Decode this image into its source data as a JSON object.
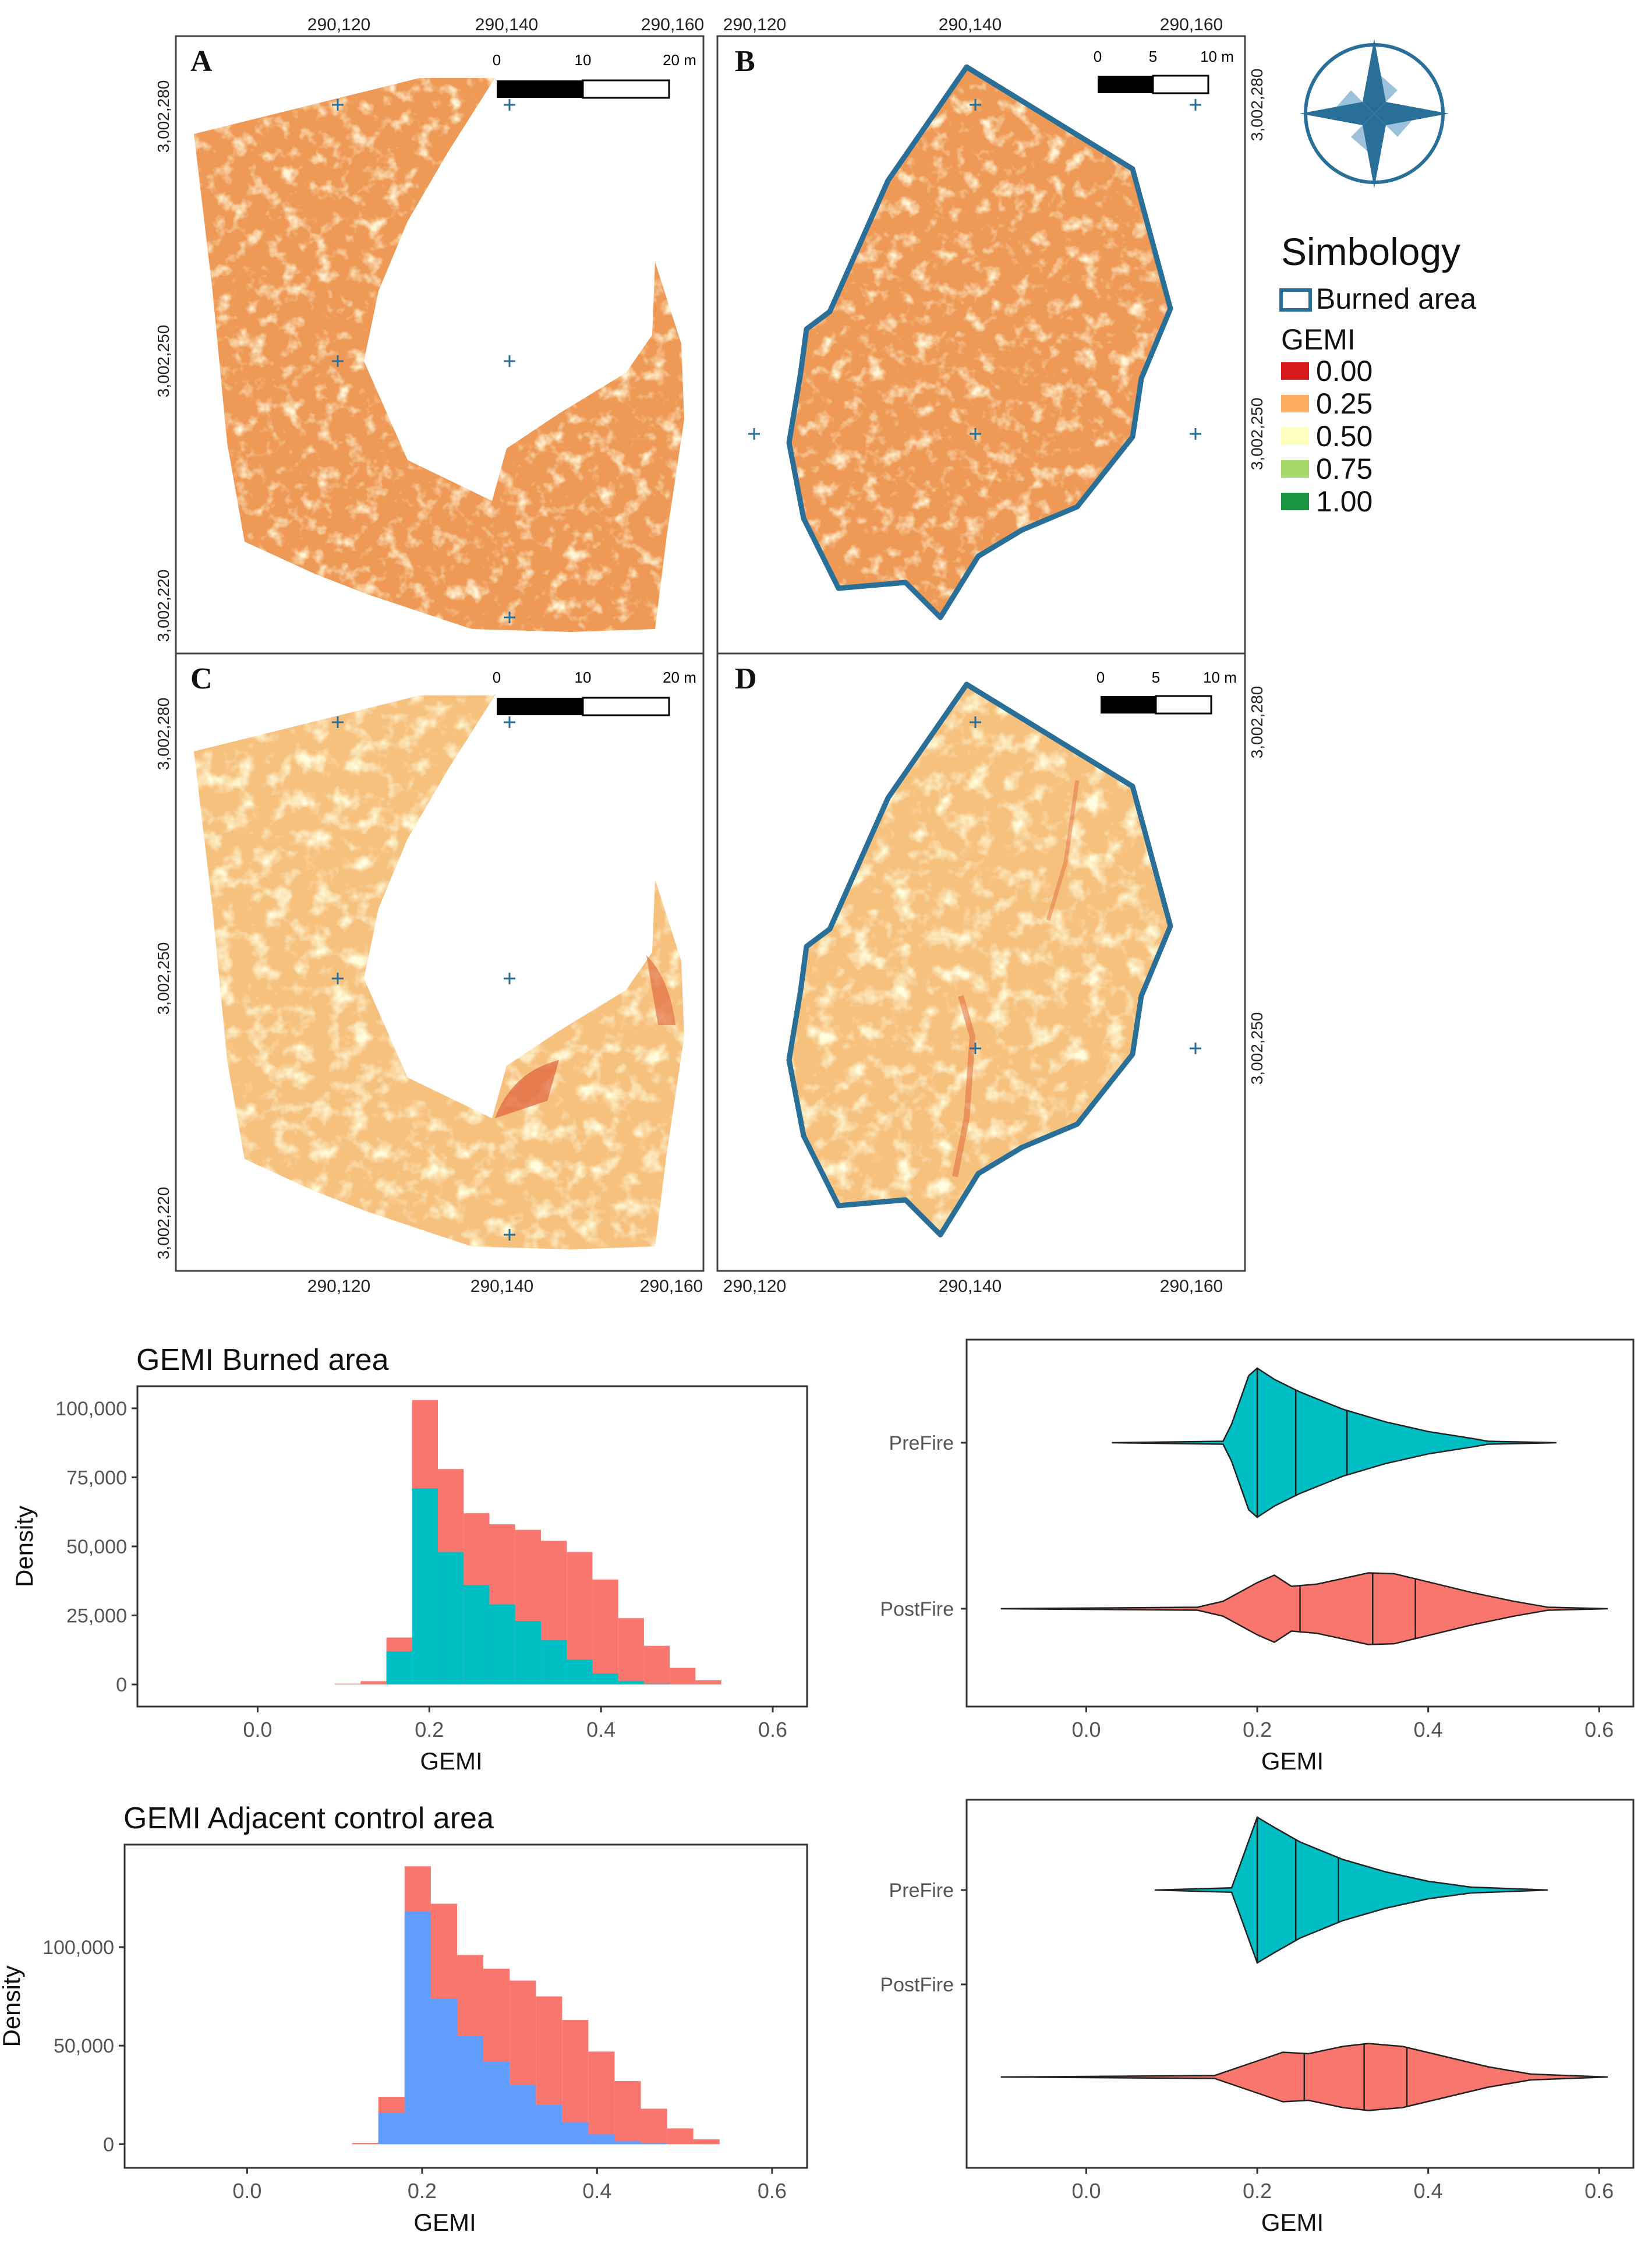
{
  "colors": {
    "burned_outline": "#2a6f97",
    "gemi_ramp": [
      "#d7191c",
      "#fdae61",
      "#ffffbf",
      "#a6d96a",
      "#1a9641"
    ],
    "prefire": "#00bfc4",
    "postfire": "#f8766d",
    "control_prefire": "#619cff",
    "map_pre": "#ee9955",
    "map_post": "#f6c07d"
  },
  "maps": {
    "panels": [
      {
        "id": "A",
        "label": "A",
        "scale": {
          "ticks": [
            "0",
            "10",
            "20 m"
          ]
        }
      },
      {
        "id": "B",
        "label": "B",
        "scale": {
          "ticks": [
            "0",
            "5",
            "10 m"
          ]
        }
      },
      {
        "id": "C",
        "label": "C",
        "scale": {
          "ticks": [
            "0",
            "10",
            "20 m"
          ]
        }
      },
      {
        "id": "D",
        "label": "D",
        "scale": {
          "ticks": [
            "0",
            "5",
            "10 m"
          ]
        }
      }
    ],
    "top_x_ticks_left": [
      "290,120",
      "290,140",
      "290,160"
    ],
    "top_x_ticks_right": [
      "290,120",
      "290,140",
      "290,160"
    ],
    "bottom_x_ticks_left": [
      "290,120",
      "290,140",
      "290,160"
    ],
    "bottom_x_ticks_right": [
      "290,120",
      "290,140",
      "290,160"
    ],
    "y_ticks_A": [
      "3,002,280",
      "3,002,250",
      "3,002,220"
    ],
    "y_ticks_B": [
      "3,002,280",
      "3,002,250"
    ],
    "y_ticks_C": [
      "3,002,280",
      "3,002,250",
      "3,002,220"
    ],
    "y_ticks_D": [
      "3,002,280",
      "3,002,250"
    ]
  },
  "legend": {
    "title": "Simbology",
    "burned_label": "Burned area",
    "gemi_title": "GEMI",
    "gemi_items": [
      "0.00",
      "0.25",
      "0.50",
      "0.75",
      "1.00"
    ]
  },
  "chart_data": [
    {
      "type": "bar",
      "title": "GEMI Burned area",
      "xlabel": "GEMI",
      "ylabel": "Density",
      "xlim": [
        -0.14,
        0.64
      ],
      "ylim": [
        -8000,
        108000
      ],
      "x_ticks": [
        "0.0",
        "0.2",
        "0.4",
        "0.6"
      ],
      "y_ticks": [
        "0",
        "25,000",
        "50,000",
        "75,000",
        "100,000"
      ],
      "bin_width": 0.03,
      "bins": [
        0.105,
        0.135,
        0.165,
        0.195,
        0.225,
        0.255,
        0.285,
        0.315,
        0.345,
        0.375,
        0.405,
        0.435,
        0.465,
        0.495,
        0.525
      ],
      "series": [
        {
          "name": "PostFire",
          "values": [
            300,
            1200,
            17000,
            103000,
            78000,
            62000,
            58000,
            56000,
            52000,
            48000,
            38000,
            24000,
            14000,
            6000,
            1500
          ]
        },
        {
          "name": "PreFire",
          "values": [
            0,
            0,
            12000,
            71000,
            48000,
            36000,
            29000,
            23000,
            16000,
            9000,
            4000,
            1200,
            300,
            0,
            0
          ]
        }
      ]
    },
    {
      "type": "violin",
      "xlabel": "GEMI",
      "xlim": [
        -0.14,
        0.64
      ],
      "x_ticks": [
        "0.0",
        "0.2",
        "0.4",
        "0.6"
      ],
      "categories": [
        "PreFire",
        "PostFire"
      ],
      "series": [
        {
          "name": "PreFire",
          "min": 0.03,
          "max": 0.55,
          "quartiles": [
            0.2,
            0.245,
            0.305
          ],
          "profile": [
            [
              0.03,
              0.0
            ],
            [
              0.16,
              0.02
            ],
            [
              0.17,
              0.25
            ],
            [
              0.19,
              0.9
            ],
            [
              0.2,
              1.0
            ],
            [
              0.22,
              0.85
            ],
            [
              0.25,
              0.68
            ],
            [
              0.3,
              0.45
            ],
            [
              0.35,
              0.28
            ],
            [
              0.4,
              0.15
            ],
            [
              0.45,
              0.06
            ],
            [
              0.47,
              0.02
            ],
            [
              0.55,
              0.0
            ]
          ]
        },
        {
          "name": "PostFire",
          "min": -0.1,
          "max": 0.61,
          "quartiles": [
            0.25,
            0.335,
            0.385
          ],
          "profile": [
            [
              -0.1,
              0.0
            ],
            [
              0.13,
              0.02
            ],
            [
              0.16,
              0.1
            ],
            [
              0.2,
              0.35
            ],
            [
              0.22,
              0.45
            ],
            [
              0.24,
              0.3
            ],
            [
              0.27,
              0.33
            ],
            [
              0.33,
              0.48
            ],
            [
              0.36,
              0.47
            ],
            [
              0.4,
              0.36
            ],
            [
              0.45,
              0.22
            ],
            [
              0.5,
              0.1
            ],
            [
              0.54,
              0.02
            ],
            [
              0.61,
              0.0
            ]
          ]
        }
      ]
    },
    {
      "type": "bar",
      "title": "GEMI Adjacent control area",
      "xlabel": "GEMI",
      "ylabel": "Density",
      "xlim": [
        -0.14,
        0.64
      ],
      "ylim": [
        -12000,
        152000
      ],
      "x_ticks": [
        "0.0",
        "0.2",
        "0.4",
        "0.6"
      ],
      "y_ticks": [
        "0",
        "50,000",
        "100,000"
      ],
      "bin_width": 0.03,
      "bins": [
        0.135,
        0.165,
        0.195,
        0.225,
        0.255,
        0.285,
        0.315,
        0.345,
        0.375,
        0.405,
        0.435,
        0.465,
        0.495,
        0.525
      ],
      "series": [
        {
          "name": "PostFire",
          "values": [
            700,
            24000,
            141000,
            122000,
            96000,
            89000,
            83000,
            75000,
            63000,
            47000,
            32000,
            18000,
            8000,
            2500
          ]
        },
        {
          "name": "PreFire",
          "values": [
            0,
            16000,
            118000,
            74000,
            55000,
            42000,
            30000,
            20000,
            11000,
            5000,
            1500,
            400,
            0,
            0
          ]
        }
      ]
    },
    {
      "type": "violin",
      "xlabel": "GEMI",
      "xlim": [
        -0.14,
        0.64
      ],
      "x_ticks": [
        "0.0",
        "0.2",
        "0.4",
        "0.6"
      ],
      "categories": [
        "PreFire",
        "PostFire"
      ],
      "series": [
        {
          "name": "PreFire",
          "min": 0.08,
          "max": 0.54,
          "quartiles": [
            0.2,
            0.245,
            0.295
          ],
          "profile": [
            [
              0.08,
              0.0
            ],
            [
              0.17,
              0.03
            ],
            [
              0.18,
              0.35
            ],
            [
              0.2,
              1.0
            ],
            [
              0.22,
              0.86
            ],
            [
              0.25,
              0.66
            ],
            [
              0.3,
              0.42
            ],
            [
              0.35,
              0.25
            ],
            [
              0.4,
              0.12
            ],
            [
              0.45,
              0.04
            ],
            [
              0.54,
              0.0
            ]
          ]
        },
        {
          "name": "PostFire",
          "min": -0.1,
          "max": 0.61,
          "quartiles": [
            0.255,
            0.325,
            0.375
          ],
          "profile": [
            [
              -0.1,
              0.0
            ],
            [
              0.15,
              0.02
            ],
            [
              0.2,
              0.22
            ],
            [
              0.23,
              0.34
            ],
            [
              0.26,
              0.32
            ],
            [
              0.3,
              0.42
            ],
            [
              0.33,
              0.46
            ],
            [
              0.37,
              0.42
            ],
            [
              0.42,
              0.28
            ],
            [
              0.47,
              0.14
            ],
            [
              0.52,
              0.04
            ],
            [
              0.61,
              0.0
            ]
          ]
        }
      ]
    }
  ]
}
